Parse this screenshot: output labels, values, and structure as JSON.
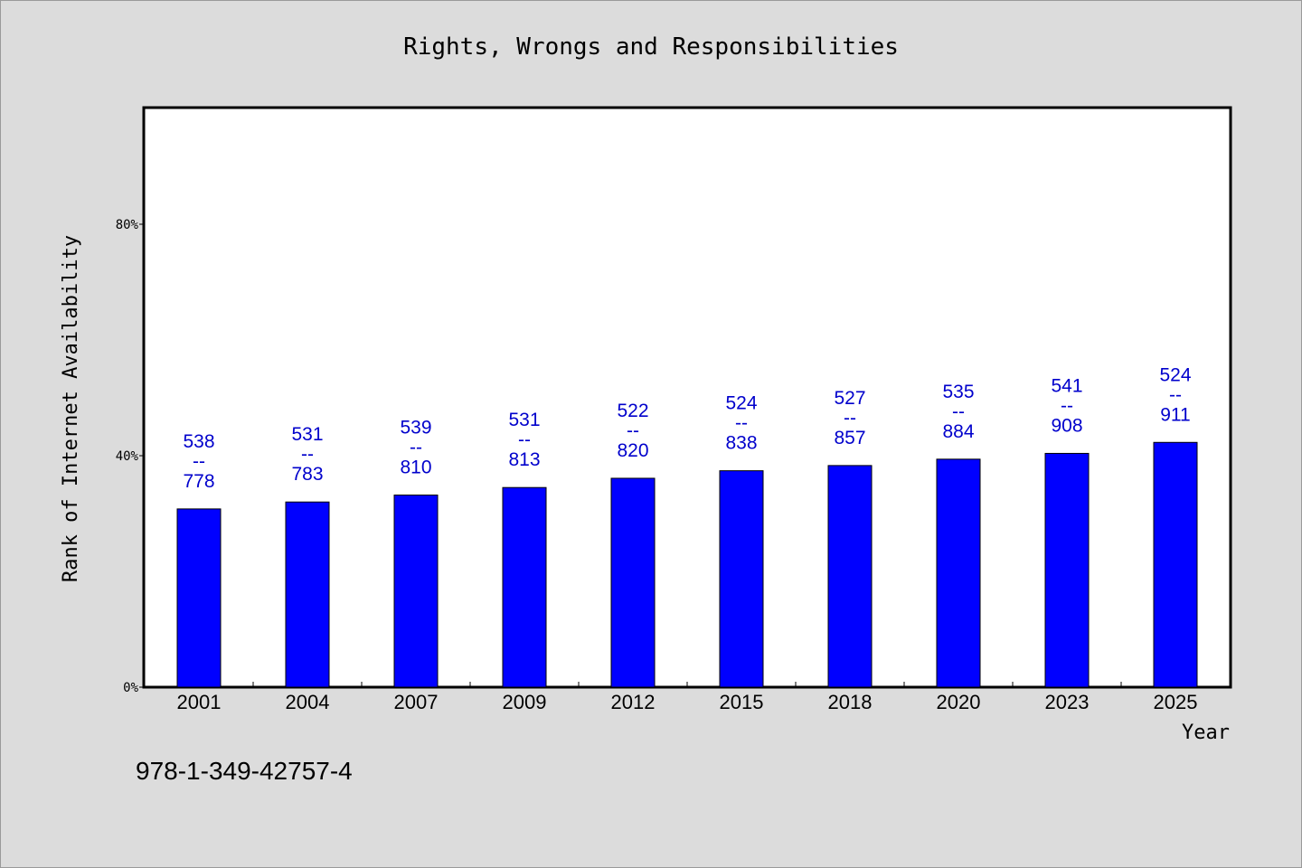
{
  "chart_data": {
    "type": "bar",
    "title": "Rights, Wrongs and Responsibilities",
    "xlabel": "Year",
    "ylabel": "Rank of Internet Availability",
    "y_ticks": [
      "0%",
      "40%",
      "80%"
    ],
    "ylim": [
      0,
      100
    ],
    "categories": [
      "2001",
      "2004",
      "2007",
      "2009",
      "2012",
      "2015",
      "2018",
      "2020",
      "2023",
      "2025"
    ],
    "values": [
      30.8,
      32.0,
      33.2,
      34.5,
      36.1,
      37.4,
      38.3,
      39.4,
      40.4,
      42.3
    ],
    "bar_labels": [
      {
        "top": "538",
        "sep": "--",
        "bottom": "778"
      },
      {
        "top": "531",
        "sep": "--",
        "bottom": "783"
      },
      {
        "top": "539",
        "sep": "--",
        "bottom": "810"
      },
      {
        "top": "531",
        "sep": "--",
        "bottom": "813"
      },
      {
        "top": "522",
        "sep": "--",
        "bottom": "820"
      },
      {
        "top": "524",
        "sep": "--",
        "bottom": "838"
      },
      {
        "top": "527",
        "sep": "--",
        "bottom": "857"
      },
      {
        "top": "535",
        "sep": "--",
        "bottom": "884"
      },
      {
        "top": "541",
        "sep": "--",
        "bottom": "908"
      },
      {
        "top": "524",
        "sep": "--",
        "bottom": "911"
      }
    ],
    "bar_color": "#0000ff",
    "label_color": "#0000cc",
    "grid": false
  },
  "footer": {
    "isbn": "978-1-349-42757-4"
  }
}
